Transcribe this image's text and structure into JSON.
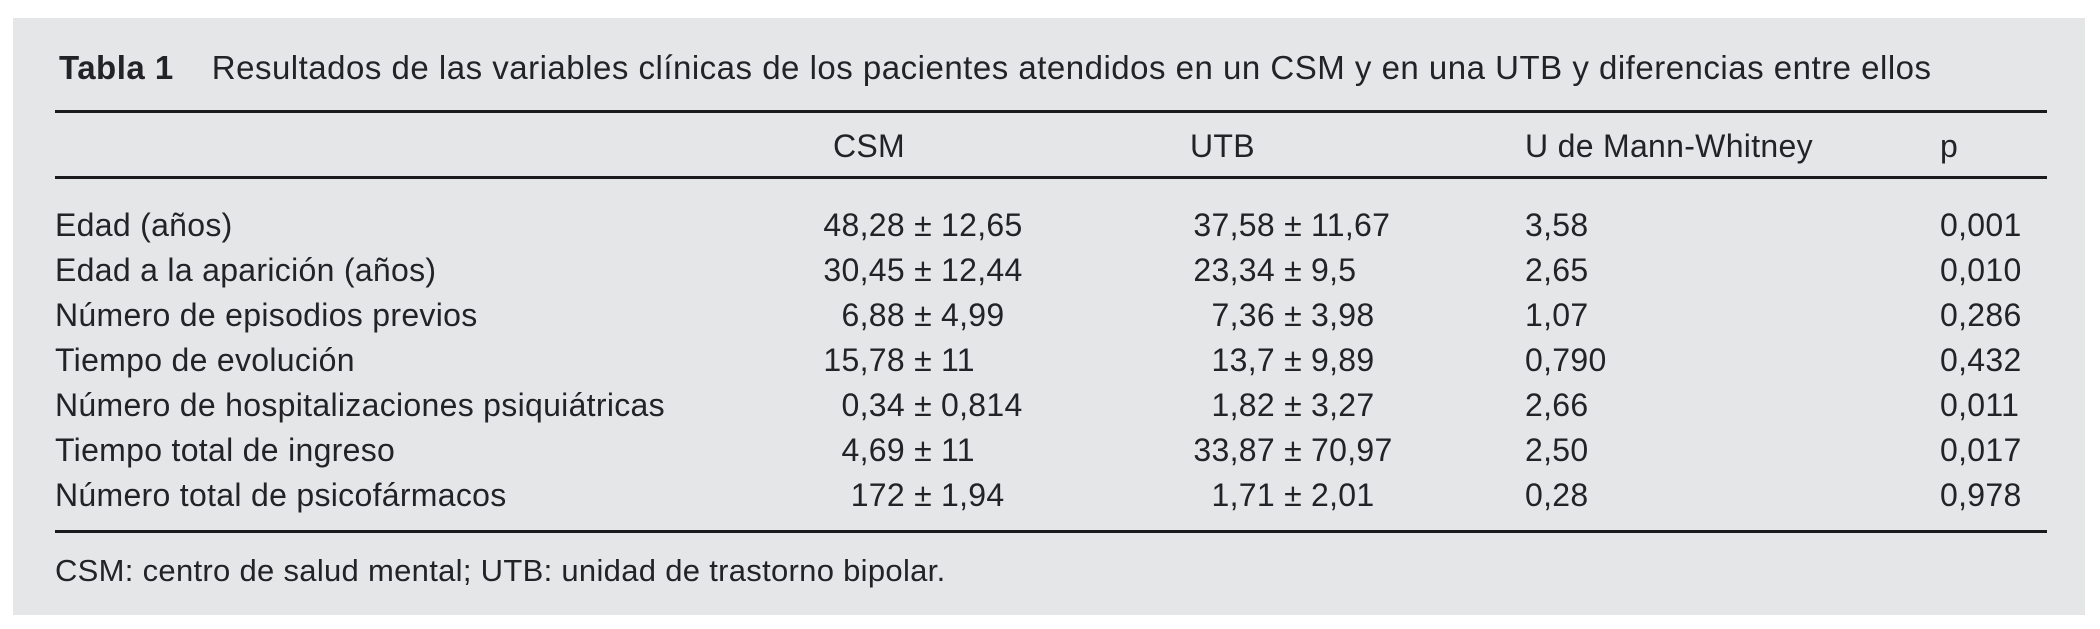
{
  "panel": {
    "title_label": "Tabla 1",
    "title_text": "Resultados de las variables clínicas de los pacientes atendidos en un CSM y en una UTB y diferencias entre ellos",
    "footnote": "CSM: centro de salud mental; UTB: unidad de trastorno bipolar."
  },
  "table": {
    "columns": [
      {
        "key": "label",
        "label": ""
      },
      {
        "key": "csm",
        "label": "CSM"
      },
      {
        "key": "utb",
        "label": "UTB"
      },
      {
        "key": "u",
        "label": "U de Mann-Whitney"
      },
      {
        "key": "p",
        "label": "p"
      }
    ],
    "rows": [
      {
        "label": "Edad (años)",
        "csm": "48,28 ± 12,65",
        "utb": "37,58 ± 11,67",
        "u": "3,58",
        "p": "0,001"
      },
      {
        "label": "Edad a la aparición (años)",
        "csm": "30,45 ± 12,44",
        "utb": "23,34 ± 9,5",
        "u": "2,65",
        "p": "0,010"
      },
      {
        "label": "Número de episodios previos",
        "csm": "6,88 ± 4,99",
        "utb": "7,36 ± 3,98",
        "u": "1,07",
        "p": "0,286"
      },
      {
        "label": "Tiempo de evolución",
        "csm": "15,78 ± 11",
        "utb": "13,7 ± 9,89",
        "u": "0,790",
        "p": "0,432"
      },
      {
        "label": "Número de hospitalizaciones psiquiátricas",
        "csm": "0,34 ± 0,814",
        "utb": "1,82 ± 3,27",
        "u": "2,66",
        "p": "0,011"
      },
      {
        "label": "Tiempo total de ingreso",
        "csm": "4,69 ± 11",
        "utb": "33,87 ± 70,97",
        "u": "2,50",
        "p": "0,017"
      },
      {
        "label": "Número total de psicofármacos",
        "csm": "172 ± 1,94",
        "utb": "1,71 ± 2,01",
        "u": "0,28",
        "p": "0,978"
      }
    ]
  },
  "colors": {
    "page_bg": "#ffffff",
    "panel_bg": "#e5e6e8",
    "text": "#232327",
    "rule": "#1b1b1d"
  }
}
